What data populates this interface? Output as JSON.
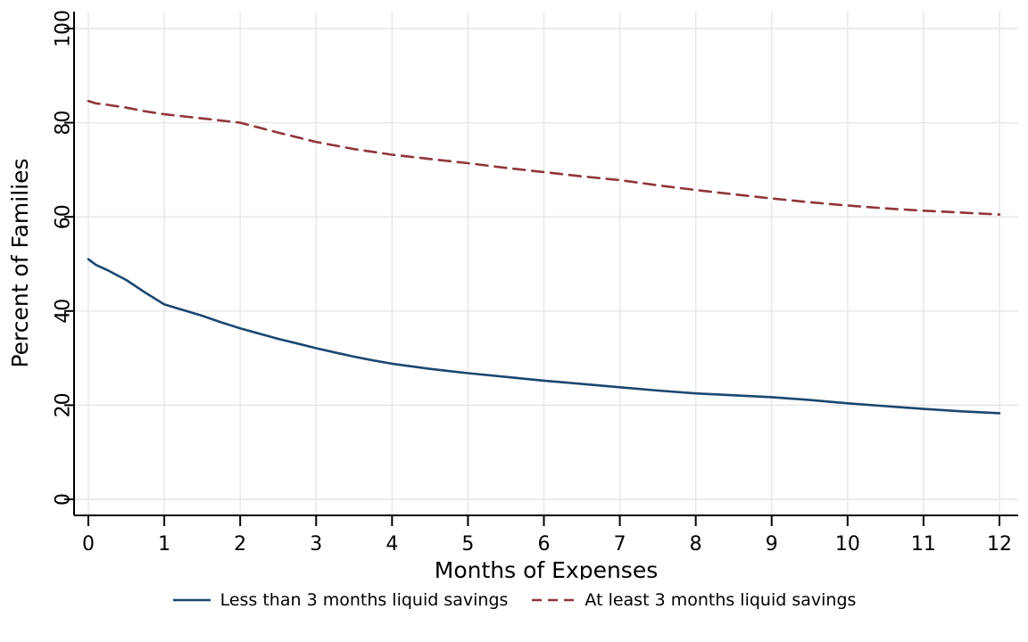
{
  "chart_data": {
    "type": "line",
    "title": "",
    "xlabel": "Months of Expenses",
    "ylabel": "Percent of Families",
    "xlim": [
      0,
      12
    ],
    "ylim": [
      0,
      100
    ],
    "xticks": [
      0,
      1,
      2,
      3,
      4,
      5,
      6,
      7,
      8,
      9,
      10,
      11,
      12
    ],
    "yticks": [
      0,
      20,
      40,
      60,
      80,
      100
    ],
    "grid": true,
    "grid_color": "#e6e6e6",
    "legend_position": "bottom",
    "series": [
      {
        "name": "Less than 3 months liquid savings",
        "color": "#1a476f",
        "style": "solid",
        "x": [
          0,
          0.1,
          0.25,
          0.5,
          0.75,
          1,
          1.25,
          1.5,
          1.75,
          2,
          2.25,
          2.5,
          2.75,
          3,
          3.25,
          3.5,
          3.75,
          4,
          4.5,
          5,
          5.5,
          6,
          6.5,
          7,
          7.5,
          8,
          8.5,
          9,
          9.5,
          10,
          10.5,
          11,
          11.5,
          12
        ],
        "y": [
          51,
          49.8,
          48.7,
          46.6,
          43.9,
          41.4,
          40.2,
          39,
          37.6,
          36.3,
          35.2,
          34.1,
          33.1,
          32.1,
          31.2,
          30.3,
          29.5,
          28.8,
          27.7,
          26.8,
          26,
          25.2,
          24.5,
          23.8,
          23.1,
          22.5,
          22.1,
          21.7,
          21.1,
          20.4,
          19.8,
          19.2,
          18.7,
          18.3
        ]
      },
      {
        "name": "At least 3 months liquid savings",
        "color": "#90353b",
        "style": "dashed",
        "x": [
          0,
          0.1,
          0.25,
          0.5,
          0.75,
          1,
          1.5,
          2,
          2.5,
          3,
          3.5,
          4,
          4.5,
          5,
          5.5,
          6,
          6.5,
          7,
          7.5,
          8,
          8.5,
          9,
          9.5,
          10,
          10.5,
          11,
          11.5,
          12
        ],
        "y": [
          84.6,
          84.1,
          83.8,
          83.2,
          82.4,
          81.8,
          80.9,
          80,
          77.9,
          75.9,
          74.4,
          73.2,
          72.3,
          71.4,
          70.4,
          69.5,
          68.6,
          67.8,
          66.7,
          65.7,
          64.8,
          63.9,
          63.1,
          62.4,
          61.8,
          61.3,
          60.9,
          60.5
        ]
      }
    ]
  }
}
